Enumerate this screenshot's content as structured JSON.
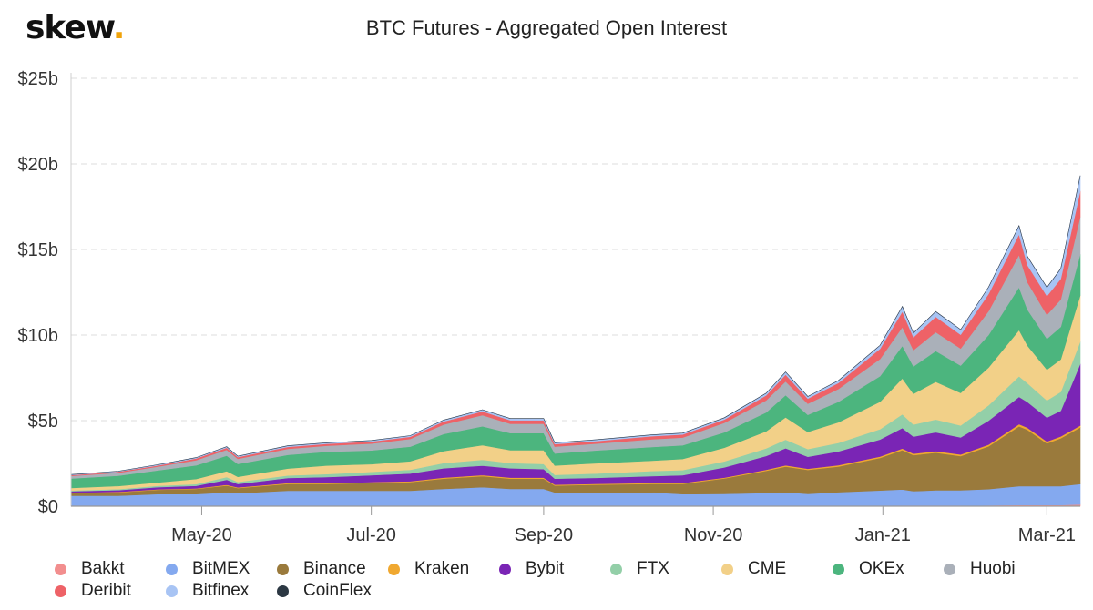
{
  "brand": {
    "name": "skew",
    "dot": "."
  },
  "chart_data": {
    "type": "area",
    "stacked": true,
    "title": "BTC Futures - Aggregated Open Interest",
    "xlabel": "",
    "ylabel": "",
    "ylim": [
      0,
      25
    ],
    "y_unit": "billion USD",
    "y_ticks": [
      "$0",
      "$5b",
      "$10b",
      "$15b",
      "$20b",
      "$25b"
    ],
    "y_tick_values": [
      0,
      5,
      10,
      15,
      20,
      25
    ],
    "x_ticks": [
      "May-20",
      "Jul-20",
      "Sep-20",
      "Nov-20",
      "Jan-21",
      "Mar-21"
    ],
    "x_tick_dates": [
      "2020-05-01",
      "2020-07-01",
      "2020-09-01",
      "2020-11-01",
      "2021-01-01",
      "2021-03-01"
    ],
    "x_range": [
      "2020-03-15",
      "2021-03-13"
    ],
    "grid": "horizontal dashed",
    "legend_position": "bottom",
    "x": [
      "2020-03-15",
      "2020-04-01",
      "2020-04-15",
      "2020-04-29",
      "2020-05-10",
      "2020-05-14",
      "2020-06-01",
      "2020-06-15",
      "2020-07-01",
      "2020-07-15",
      "2020-07-27",
      "2020-08-10",
      "2020-08-20",
      "2020-09-01",
      "2020-09-05",
      "2020-09-20",
      "2020-10-10",
      "2020-10-21",
      "2020-11-05",
      "2020-11-20",
      "2020-11-27",
      "2020-12-05",
      "2020-12-16",
      "2020-12-31",
      "2021-01-08",
      "2021-01-12",
      "2021-01-20",
      "2021-01-29",
      "2021-02-08",
      "2021-02-19",
      "2021-02-22",
      "2021-03-01",
      "2021-03-06",
      "2021-03-13"
    ],
    "series": [
      {
        "name": "Bakkt",
        "color": "#f28e8e",
        "values": [
          0.01,
          0.01,
          0.01,
          0.01,
          0.01,
          0.01,
          0.01,
          0.01,
          0.01,
          0.01,
          0.01,
          0.01,
          0.01,
          0.01,
          0.01,
          0.01,
          0.01,
          0.01,
          0.02,
          0.02,
          0.02,
          0.02,
          0.02,
          0.02,
          0.03,
          0.03,
          0.03,
          0.03,
          0.05,
          0.07,
          0.07,
          0.07,
          0.07,
          0.1
        ]
      },
      {
        "name": "BitMEX",
        "color": "#84a9ef",
        "values": [
          0.6,
          0.6,
          0.7,
          0.7,
          0.8,
          0.75,
          0.9,
          0.9,
          0.9,
          0.9,
          1.0,
          1.1,
          1.0,
          1.0,
          0.8,
          0.8,
          0.8,
          0.7,
          0.7,
          0.75,
          0.8,
          0.7,
          0.8,
          0.9,
          0.95,
          0.85,
          0.9,
          0.9,
          0.95,
          1.1,
          1.1,
          1.1,
          1.1,
          1.2
        ]
      },
      {
        "name": "Binance",
        "color": "#9a7a3c",
        "values": [
          0.15,
          0.2,
          0.25,
          0.3,
          0.4,
          0.3,
          0.4,
          0.4,
          0.45,
          0.5,
          0.6,
          0.65,
          0.6,
          0.6,
          0.4,
          0.45,
          0.5,
          0.6,
          0.9,
          1.3,
          1.5,
          1.4,
          1.5,
          1.9,
          2.3,
          2.1,
          2.2,
          2.0,
          2.5,
          3.5,
          3.3,
          2.5,
          2.8,
          3.3
        ]
      },
      {
        "name": "Kraken",
        "color": "#f0a830",
        "values": [
          0.03,
          0.03,
          0.03,
          0.03,
          0.04,
          0.04,
          0.04,
          0.04,
          0.05,
          0.05,
          0.06,
          0.06,
          0.06,
          0.06,
          0.05,
          0.05,
          0.05,
          0.05,
          0.05,
          0.06,
          0.07,
          0.07,
          0.08,
          0.08,
          0.09,
          0.09,
          0.09,
          0.09,
          0.1,
          0.12,
          0.12,
          0.11,
          0.11,
          0.12
        ]
      },
      {
        "name": "Bybit",
        "color": "#7a25b5",
        "values": [
          0.08,
          0.1,
          0.12,
          0.15,
          0.3,
          0.2,
          0.3,
          0.35,
          0.4,
          0.45,
          0.55,
          0.55,
          0.55,
          0.5,
          0.35,
          0.35,
          0.4,
          0.45,
          0.6,
          0.8,
          1.0,
          0.7,
          0.8,
          1.0,
          1.2,
          1.0,
          1.1,
          1.0,
          1.4,
          1.6,
          1.5,
          1.4,
          1.5,
          3.6
        ]
      },
      {
        "name": "FTX",
        "color": "#93cfa8",
        "values": [
          0.05,
          0.06,
          0.08,
          0.1,
          0.15,
          0.12,
          0.15,
          0.18,
          0.2,
          0.22,
          0.3,
          0.35,
          0.3,
          0.3,
          0.22,
          0.25,
          0.3,
          0.3,
          0.35,
          0.45,
          0.5,
          0.45,
          0.5,
          0.6,
          0.8,
          0.7,
          0.75,
          0.7,
          0.9,
          1.2,
          1.1,
          1.0,
          1.1,
          1.3
        ]
      },
      {
        "name": "CME",
        "color": "#f2d088",
        "values": [
          0.15,
          0.18,
          0.2,
          0.3,
          0.35,
          0.3,
          0.4,
          0.5,
          0.45,
          0.5,
          0.7,
          0.85,
          0.75,
          0.8,
          0.55,
          0.6,
          0.6,
          0.65,
          0.8,
          1.0,
          1.3,
          1.0,
          1.2,
          1.6,
          2.1,
          1.8,
          2.2,
          1.9,
          2.2,
          2.7,
          2.2,
          1.8,
          1.9,
          2.7
        ]
      },
      {
        "name": "OKEx",
        "color": "#4cb57e",
        "values": [
          0.55,
          0.6,
          0.7,
          0.8,
          0.9,
          0.75,
          0.8,
          0.8,
          0.8,
          0.85,
          1.0,
          1.1,
          1.0,
          1.0,
          0.7,
          0.75,
          0.8,
          0.8,
          0.9,
          1.1,
          1.3,
          1.0,
          1.2,
          1.5,
          1.9,
          1.6,
          1.8,
          1.6,
          1.9,
          2.5,
          2.1,
          1.8,
          1.9,
          2.4
        ]
      },
      {
        "name": "Huobi",
        "color": "#aab0b9",
        "values": [
          0.15,
          0.18,
          0.22,
          0.3,
          0.35,
          0.3,
          0.35,
          0.35,
          0.4,
          0.45,
          0.55,
          0.65,
          0.55,
          0.55,
          0.4,
          0.4,
          0.45,
          0.45,
          0.55,
          0.7,
          0.8,
          0.65,
          0.75,
          1.0,
          1.1,
          0.95,
          1.1,
          1.0,
          1.4,
          1.9,
          1.6,
          1.4,
          1.6,
          2.2
        ]
      },
      {
        "name": "Deribit",
        "color": "#ee6267",
        "values": [
          0.05,
          0.06,
          0.07,
          0.1,
          0.12,
          0.1,
          0.12,
          0.12,
          0.12,
          0.13,
          0.18,
          0.22,
          0.2,
          0.2,
          0.15,
          0.15,
          0.18,
          0.18,
          0.2,
          0.3,
          0.4,
          0.3,
          0.35,
          0.6,
          0.9,
          0.75,
          0.9,
          0.8,
          1.0,
          1.2,
          1.0,
          1.1,
          1.2,
          1.5
        ]
      },
      {
        "name": "Bitfinex",
        "color": "#a8c4f4",
        "values": [
          0.03,
          0.03,
          0.04,
          0.05,
          0.06,
          0.05,
          0.06,
          0.06,
          0.06,
          0.06,
          0.08,
          0.1,
          0.1,
          0.1,
          0.08,
          0.08,
          0.08,
          0.08,
          0.1,
          0.12,
          0.15,
          0.12,
          0.14,
          0.2,
          0.3,
          0.25,
          0.3,
          0.3,
          0.4,
          0.5,
          0.5,
          0.5,
          0.6,
          0.9
        ]
      },
      {
        "name": "CoinFlex",
        "color": "#2c3843",
        "values": [
          0,
          0,
          0,
          0,
          0,
          0,
          0,
          0,
          0,
          0,
          0,
          0,
          0,
          0,
          0,
          0,
          0,
          0,
          0,
          0,
          0,
          0,
          0,
          0,
          0,
          0,
          0,
          0,
          0,
          0,
          0,
          0,
          0,
          0
        ]
      }
    ]
  }
}
